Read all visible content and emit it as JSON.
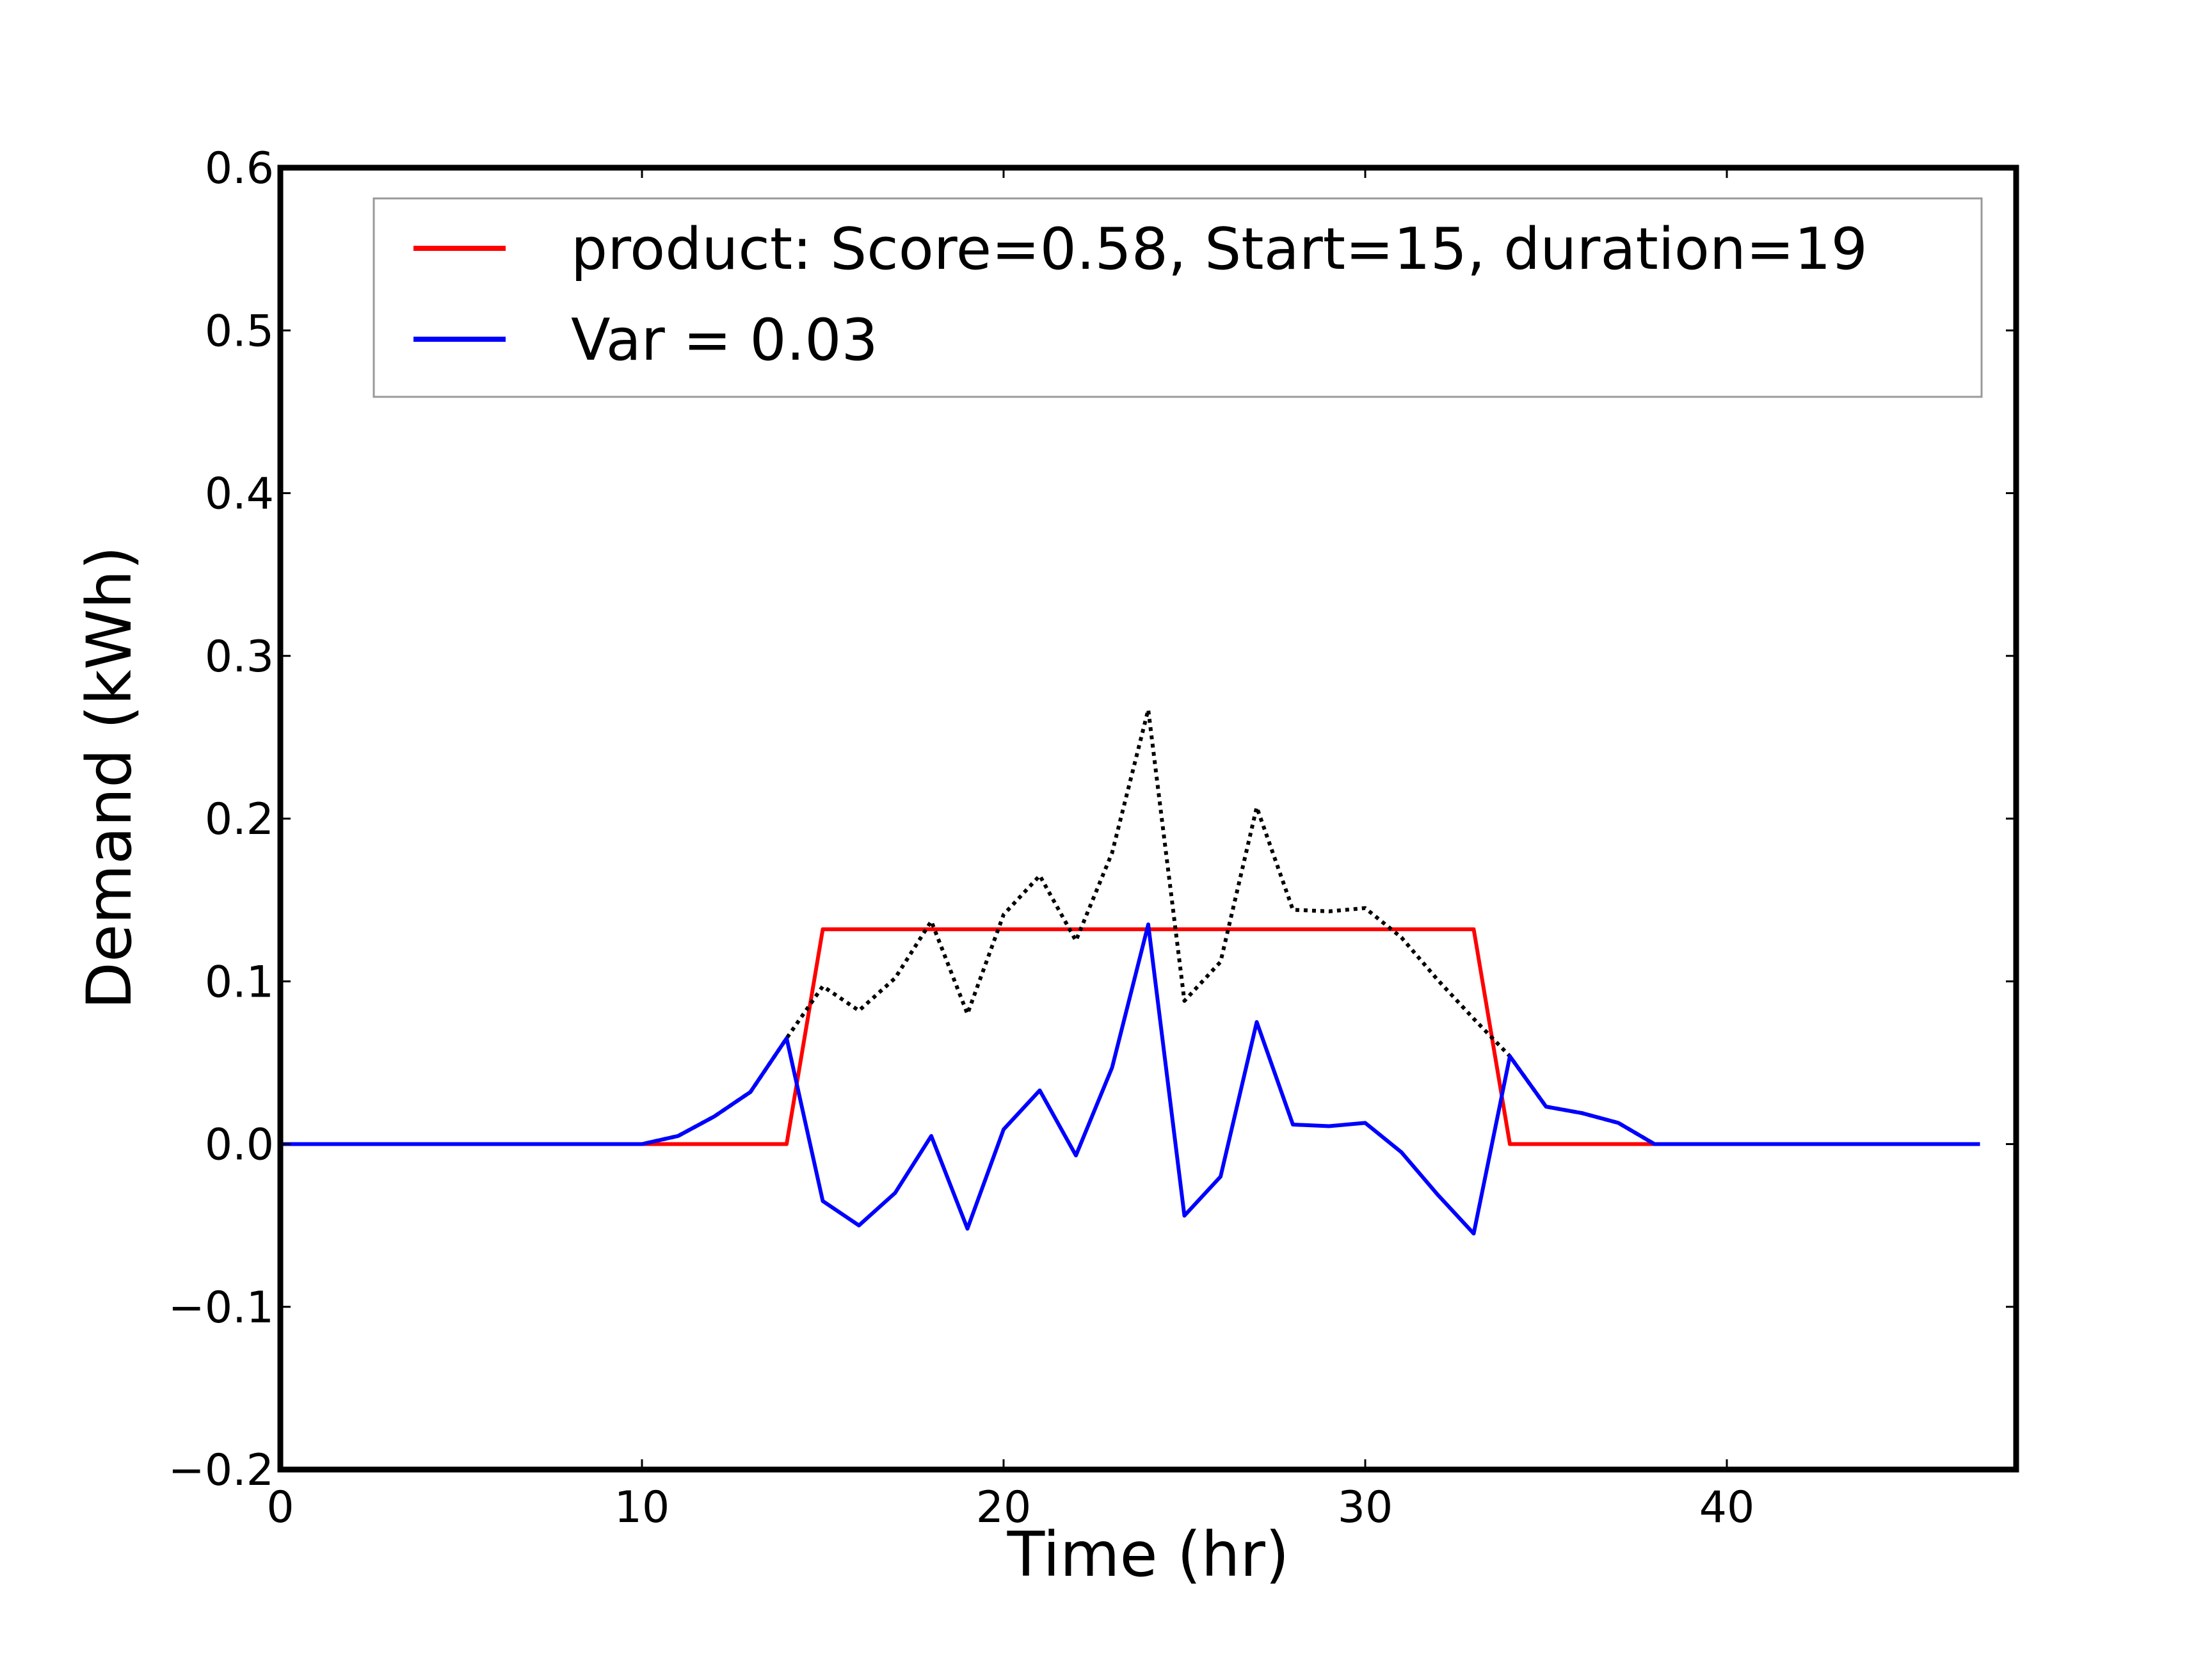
{
  "chart_data": {
    "type": "line",
    "title": "",
    "xlabel": "Time (hr)",
    "ylabel": "Demand (kWh)",
    "xlim": [
      0,
      48
    ],
    "ylim": [
      -0.2,
      0.6
    ],
    "xticks": [
      0,
      10,
      20,
      30,
      40
    ],
    "xtick_labels": [
      "0",
      "10",
      "20",
      "30",
      "40"
    ],
    "yticks": [
      -0.2,
      -0.1,
      0.0,
      0.1,
      0.2,
      0.3,
      0.4,
      0.5,
      0.6
    ],
    "ytick_labels": [
      "−0.2",
      "−0.1",
      "0.0",
      "0.1",
      "0.2",
      "0.3",
      "0.4",
      "0.5",
      "0.6"
    ],
    "grid": false,
    "legend_position": "top",
    "series": [
      {
        "name": "product: Score=0.58, Start=15, duration=19",
        "color": "#ff0000",
        "style": "solid",
        "in_legend": true,
        "x": [
          0,
          14,
          15,
          33,
          34,
          47
        ],
        "y": [
          0.0,
          0.0,
          0.132,
          0.132,
          0.0,
          0.0
        ]
      },
      {
        "name": "Var = 0.03",
        "color": "#0000ff",
        "style": "solid",
        "in_legend": true,
        "x": [
          0,
          1,
          2,
          3,
          4,
          5,
          6,
          7,
          8,
          9,
          10,
          11,
          12,
          13,
          14,
          15,
          16,
          17,
          18,
          19,
          20,
          21,
          22,
          23,
          24,
          25,
          26,
          27,
          28,
          29,
          30,
          31,
          32,
          33,
          34,
          35,
          36,
          37,
          38,
          39,
          40,
          41,
          42,
          43,
          44,
          45,
          46,
          47
        ],
        "y": [
          0,
          0,
          0,
          0,
          0,
          0,
          0,
          0,
          0,
          0,
          0,
          0.005,
          0.017,
          0.032,
          0.065,
          -0.035,
          -0.05,
          -0.03,
          0.005,
          -0.052,
          0.009,
          0.033,
          -0.007,
          0.047,
          0.135,
          -0.044,
          -0.02,
          0.075,
          0.012,
          0.011,
          0.013,
          -0.005,
          -0.031,
          -0.055,
          0.054,
          0.023,
          0.019,
          0.013,
          0,
          0,
          0,
          0,
          0,
          0,
          0,
          0,
          0,
          0
        ]
      },
      {
        "name": "",
        "color": "#000000",
        "style": "dotted",
        "in_legend": false,
        "x": [
          0,
          1,
          2,
          3,
          4,
          5,
          6,
          7,
          8,
          9,
          10,
          11,
          12,
          13,
          14,
          15,
          16,
          17,
          18,
          19,
          20,
          21,
          22,
          23,
          24,
          25,
          26,
          27,
          28,
          29,
          30,
          31,
          32,
          33,
          34,
          35,
          36,
          37,
          38,
          39,
          40,
          41,
          42,
          43,
          44,
          45,
          46,
          47
        ],
        "y": [
          0,
          0,
          0,
          0,
          0,
          0,
          0,
          0,
          0,
          0,
          0,
          0.005,
          0.017,
          0.032,
          0.065,
          0.097,
          0.082,
          0.102,
          0.137,
          0.08,
          0.141,
          0.165,
          0.125,
          0.179,
          0.267,
          0.088,
          0.112,
          0.207,
          0.144,
          0.143,
          0.145,
          0.127,
          0.101,
          0.077,
          0.054,
          0.023,
          0.019,
          0.013,
          0,
          0,
          0,
          0,
          0,
          0,
          0,
          0,
          0,
          0
        ]
      }
    ]
  }
}
